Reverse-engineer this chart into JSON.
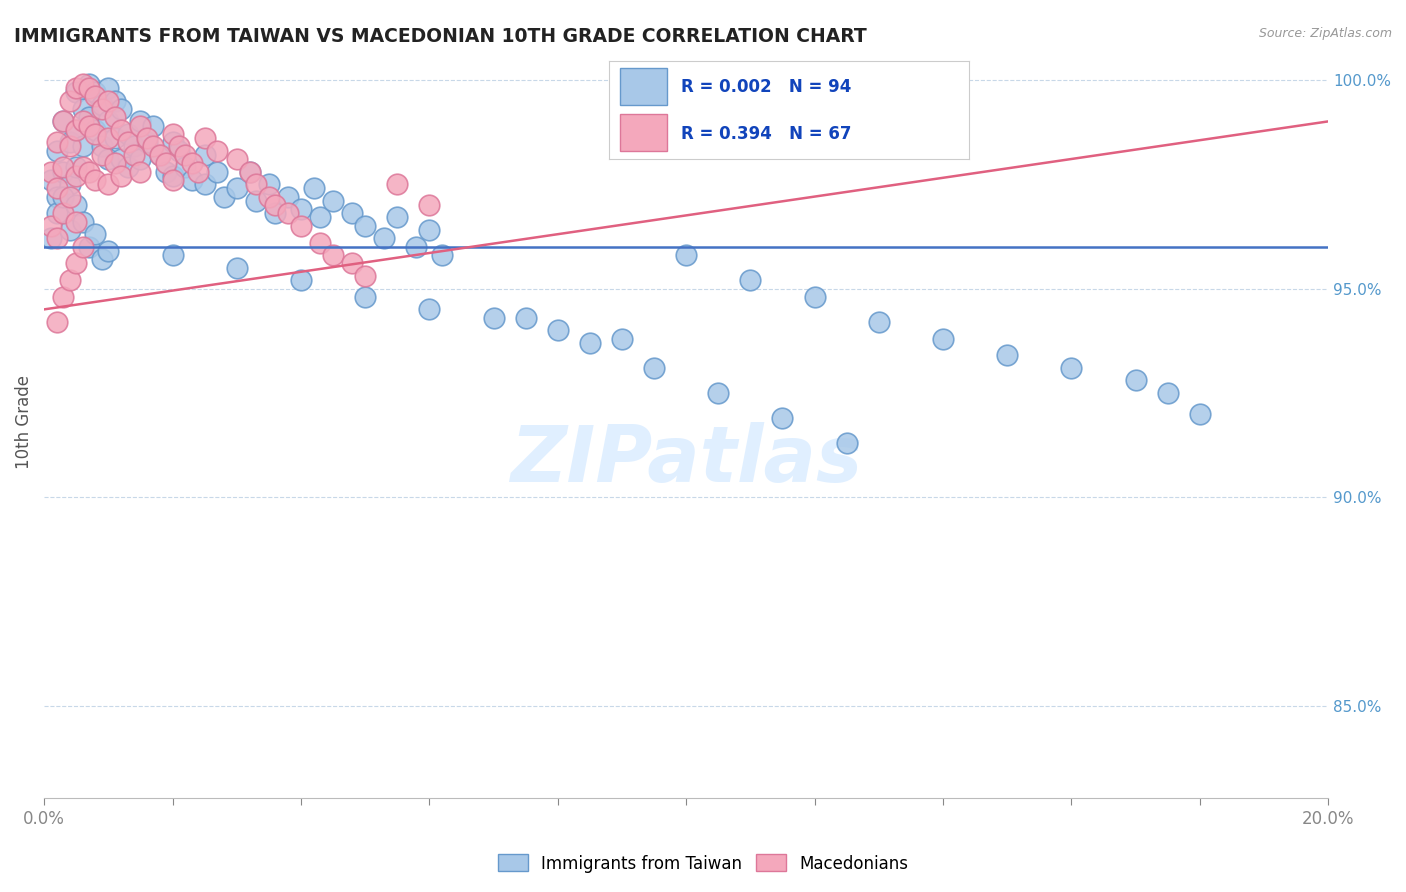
{
  "title": "IMMIGRANTS FROM TAIWAN VS MACEDONIAN 10TH GRADE CORRELATION CHART",
  "source": "Source: ZipAtlas.com",
  "ylabel": "10th Grade",
  "xmin": 0.0,
  "xmax": 0.2,
  "ymin": 0.828,
  "ymax": 1.008,
  "right_yticks": [
    0.85,
    0.9,
    0.95,
    1.0
  ],
  "right_yticklabels": [
    "85.0%",
    "90.0%",
    "95.0%",
    "100.0%"
  ],
  "legend_blue_r": "R = 0.002",
  "legend_blue_n": "N = 94",
  "legend_pink_r": "R = 0.394",
  "legend_pink_n": "N = 67",
  "legend_label_blue": "Immigrants from Taiwan",
  "legend_label_pink": "Macedonians",
  "blue_color": "#a8c8e8",
  "pink_color": "#f4a8bc",
  "blue_edge_color": "#6699cc",
  "pink_edge_color": "#dd7799",
  "trendline_blue_color": "#4472c4",
  "trendline_pink_color": "#e06080",
  "trendline_blue_y0": 0.96,
  "trendline_blue_y1": 0.96,
  "trendline_pink_y0": 0.945,
  "trendline_pink_y1": 0.99,
  "blue_x": [
    0.001,
    0.002,
    0.002,
    0.003,
    0.003,
    0.004,
    0.004,
    0.005,
    0.005,
    0.005,
    0.006,
    0.006,
    0.007,
    0.007,
    0.008,
    0.008,
    0.009,
    0.009,
    0.01,
    0.01,
    0.01,
    0.011,
    0.011,
    0.012,
    0.012,
    0.013,
    0.013,
    0.014,
    0.015,
    0.015,
    0.016,
    0.017,
    0.018,
    0.019,
    0.02,
    0.02,
    0.021,
    0.022,
    0.023,
    0.025,
    0.025,
    0.027,
    0.028,
    0.03,
    0.032,
    0.033,
    0.035,
    0.036,
    0.038,
    0.04,
    0.042,
    0.043,
    0.045,
    0.048,
    0.05,
    0.053,
    0.055,
    0.058,
    0.06,
    0.062,
    0.001,
    0.002,
    0.003,
    0.004,
    0.005,
    0.006,
    0.007,
    0.008,
    0.009,
    0.01,
    0.02,
    0.03,
    0.04,
    0.05,
    0.06,
    0.07,
    0.08,
    0.09,
    0.1,
    0.11,
    0.12,
    0.13,
    0.14,
    0.15,
    0.16,
    0.17,
    0.175,
    0.18,
    0.075,
    0.085,
    0.095,
    0.105,
    0.115,
    0.125
  ],
  "blue_y": [
    0.976,
    0.983,
    0.972,
    0.99,
    0.978,
    0.985,
    0.975,
    0.997,
    0.988,
    0.979,
    0.993,
    0.984,
    0.999,
    0.991,
    0.997,
    0.988,
    0.994,
    0.984,
    0.998,
    0.99,
    0.981,
    0.995,
    0.986,
    0.993,
    0.981,
    0.987,
    0.979,
    0.984,
    0.99,
    0.981,
    0.985,
    0.989,
    0.982,
    0.978,
    0.985,
    0.977,
    0.983,
    0.979,
    0.976,
    0.982,
    0.975,
    0.978,
    0.972,
    0.974,
    0.978,
    0.971,
    0.975,
    0.968,
    0.972,
    0.969,
    0.974,
    0.967,
    0.971,
    0.968,
    0.965,
    0.962,
    0.967,
    0.96,
    0.964,
    0.958,
    0.962,
    0.968,
    0.972,
    0.964,
    0.97,
    0.966,
    0.96,
    0.963,
    0.957,
    0.959,
    0.958,
    0.955,
    0.952,
    0.948,
    0.945,
    0.943,
    0.94,
    0.938,
    0.958,
    0.952,
    0.948,
    0.942,
    0.938,
    0.934,
    0.931,
    0.928,
    0.925,
    0.92,
    0.943,
    0.937,
    0.931,
    0.925,
    0.919,
    0.913
  ],
  "pink_x": [
    0.001,
    0.001,
    0.002,
    0.002,
    0.002,
    0.003,
    0.003,
    0.003,
    0.004,
    0.004,
    0.004,
    0.005,
    0.005,
    0.005,
    0.005,
    0.006,
    0.006,
    0.006,
    0.007,
    0.007,
    0.007,
    0.008,
    0.008,
    0.008,
    0.009,
    0.009,
    0.01,
    0.01,
    0.01,
    0.011,
    0.011,
    0.012,
    0.012,
    0.013,
    0.014,
    0.015,
    0.015,
    0.016,
    0.017,
    0.018,
    0.019,
    0.02,
    0.02,
    0.021,
    0.022,
    0.023,
    0.024,
    0.025,
    0.027,
    0.03,
    0.032,
    0.033,
    0.035,
    0.036,
    0.038,
    0.04,
    0.043,
    0.045,
    0.048,
    0.05,
    0.002,
    0.003,
    0.004,
    0.005,
    0.006,
    0.055,
    0.06
  ],
  "pink_y": [
    0.978,
    0.965,
    0.985,
    0.974,
    0.962,
    0.99,
    0.979,
    0.968,
    0.995,
    0.984,
    0.972,
    0.998,
    0.988,
    0.977,
    0.966,
    0.999,
    0.99,
    0.979,
    0.998,
    0.989,
    0.978,
    0.996,
    0.987,
    0.976,
    0.993,
    0.982,
    0.995,
    0.986,
    0.975,
    0.991,
    0.98,
    0.988,
    0.977,
    0.985,
    0.982,
    0.989,
    0.978,
    0.986,
    0.984,
    0.982,
    0.98,
    0.987,
    0.976,
    0.984,
    0.982,
    0.98,
    0.978,
    0.986,
    0.983,
    0.981,
    0.978,
    0.975,
    0.972,
    0.97,
    0.968,
    0.965,
    0.961,
    0.958,
    0.956,
    0.953,
    0.942,
    0.948,
    0.952,
    0.956,
    0.96,
    0.975,
    0.97
  ]
}
